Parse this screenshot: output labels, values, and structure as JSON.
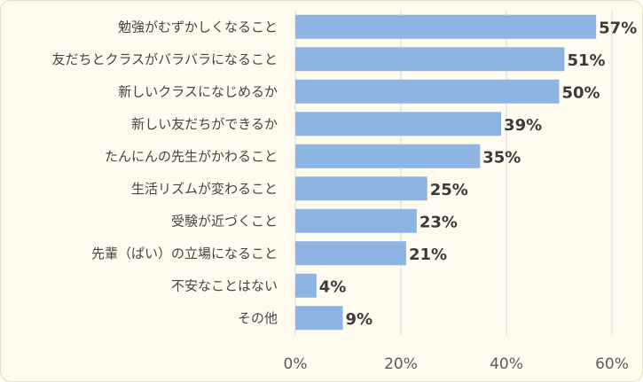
{
  "chart_data": {
    "type": "bar",
    "orientation": "horizontal",
    "categories": [
      "勉強がむずかしくなること",
      "友だちとクラスがバラバラになること",
      "新しいクラスになじめるか",
      "新しい友だちができるか",
      "たんにんの先生がかわること",
      "生活リズムが変わること",
      "受験が近づくこと",
      "先輩（ぱい）の立場になること",
      "不安なことはない",
      "その他"
    ],
    "values": [
      57,
      51,
      50,
      39,
      35,
      25,
      23,
      21,
      4,
      9
    ],
    "value_labels": [
      "57%",
      "51%",
      "50%",
      "39%",
      "35%",
      "25%",
      "23%",
      "21%",
      "4%",
      "9%"
    ],
    "x_ticks": [
      "0%",
      "20%",
      "40%",
      "60%"
    ],
    "x_tick_values": [
      0,
      20,
      40,
      60
    ],
    "xlim": [
      0,
      60
    ],
    "grid": true,
    "legend": "none",
    "colors": {
      "bar": "#8db4e2",
      "grid": "#d9d9d9",
      "background": "#fffcef"
    }
  }
}
